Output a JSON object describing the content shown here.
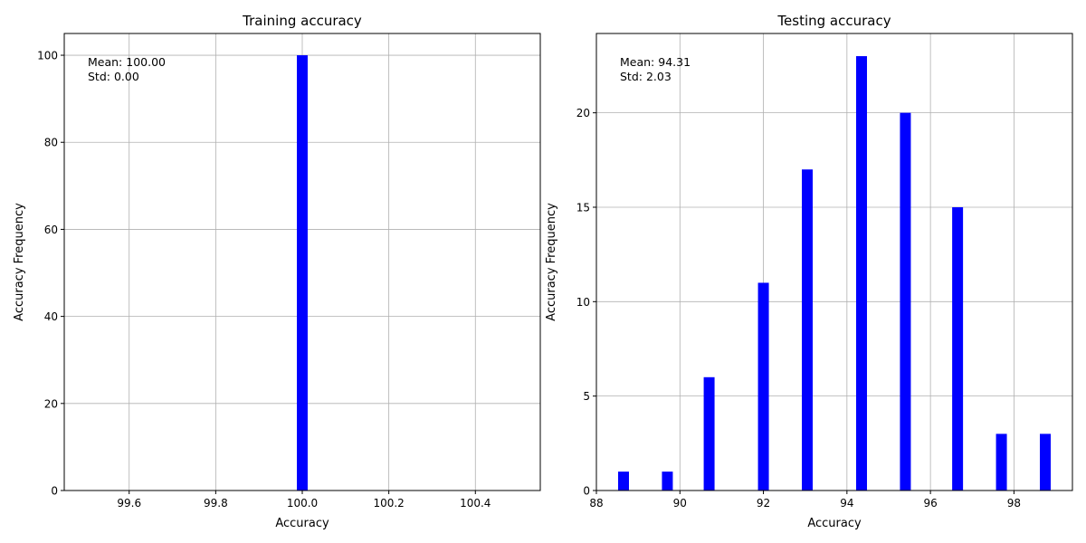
{
  "colors": {
    "bar": "#0000ff",
    "grid": "#b0b0b0"
  },
  "chart_data": [
    {
      "type": "bar",
      "title": "Training accuracy",
      "xlabel": "Accuracy",
      "ylabel": "Accuracy Frequency",
      "xlim": [
        99.45,
        100.55
      ],
      "ylim": [
        0,
        105
      ],
      "xticks": [
        99.6,
        99.8,
        100.0,
        100.2,
        100.4
      ],
      "xtick_labels": [
        "99.6",
        "99.8",
        "100.0",
        "100.2",
        "100.4"
      ],
      "yticks": [
        0,
        20,
        40,
        60,
        80,
        100
      ],
      "ytick_labels": [
        "0",
        "20",
        "40",
        "60",
        "80",
        "100"
      ],
      "bar_width": 0.025,
      "bars": [
        {
          "x": 100.0,
          "value": 100
        }
      ],
      "annotation": [
        "Mean: 100.00",
        "Std: 0.00"
      ],
      "grid": true
    },
    {
      "type": "bar",
      "title": "Testing accuracy",
      "xlabel": "Accuracy",
      "ylabel": "Accuracy Frequency",
      "xlim": [
        88.0,
        99.4
      ],
      "ylim": [
        0,
        24.2
      ],
      "xticks": [
        88,
        90,
        92,
        94,
        96,
        98
      ],
      "xtick_labels": [
        "88",
        "90",
        "92",
        "94",
        "96",
        "98"
      ],
      "yticks": [
        0,
        5,
        10,
        15,
        20
      ],
      "ytick_labels": [
        "0",
        "5",
        "10",
        "15",
        "20"
      ],
      "bar_width": 0.26,
      "bars": [
        {
          "x": 88.65,
          "value": 1
        },
        {
          "x": 89.7,
          "value": 1
        },
        {
          "x": 90.7,
          "value": 6
        },
        {
          "x": 92.0,
          "value": 11
        },
        {
          "x": 93.05,
          "value": 17
        },
        {
          "x": 94.35,
          "value": 23
        },
        {
          "x": 95.4,
          "value": 20
        },
        {
          "x": 96.65,
          "value": 15
        },
        {
          "x": 97.7,
          "value": 3
        },
        {
          "x": 98.75,
          "value": 3
        }
      ],
      "annotation": [
        "Mean: 94.31",
        "Std: 2.03"
      ],
      "grid": true
    }
  ]
}
